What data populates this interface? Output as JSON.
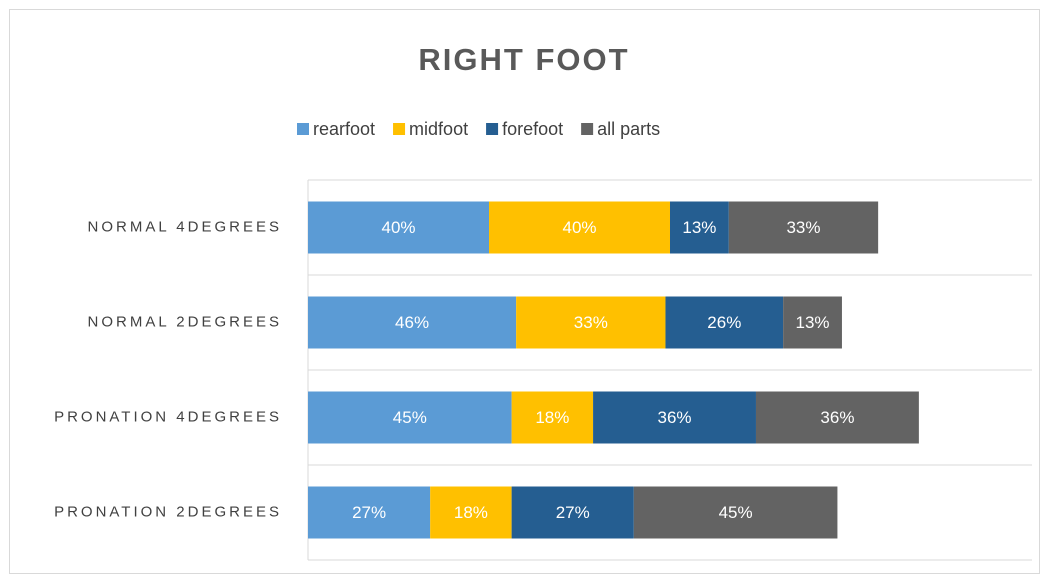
{
  "chart_data": {
    "type": "stacked_barh",
    "title": "RIGHT FOOT",
    "categories": [
      "NORMAL 4DEGREES",
      "NORMAL 2DEGREES",
      "PRONATION 4DEGREES",
      "PRONATION 2DEGREES"
    ],
    "xlim": [
      0,
      160
    ],
    "legend": "top",
    "series": [
      {
        "name": "rearfoot",
        "color": "#5b9bd5",
        "values": [
          40,
          46,
          45,
          27
        ]
      },
      {
        "name": "midfoot",
        "color": "#ffc000",
        "values": [
          40,
          33,
          18,
          18
        ]
      },
      {
        "name": "forefoot",
        "color": "#255e91",
        "values": [
          13,
          26,
          36,
          27
        ]
      },
      {
        "name": "all parts",
        "color": "#636363",
        "values": [
          33,
          13,
          36,
          45
        ]
      }
    ],
    "value_labels": [
      [
        "40%",
        "46%",
        "45%",
        "27%"
      ],
      [
        "40%",
        "33%",
        "18%",
        "18%"
      ],
      [
        "13%",
        "26%",
        "36%",
        "27%"
      ],
      [
        "33%",
        "13%",
        "36%",
        "45%"
      ]
    ]
  }
}
